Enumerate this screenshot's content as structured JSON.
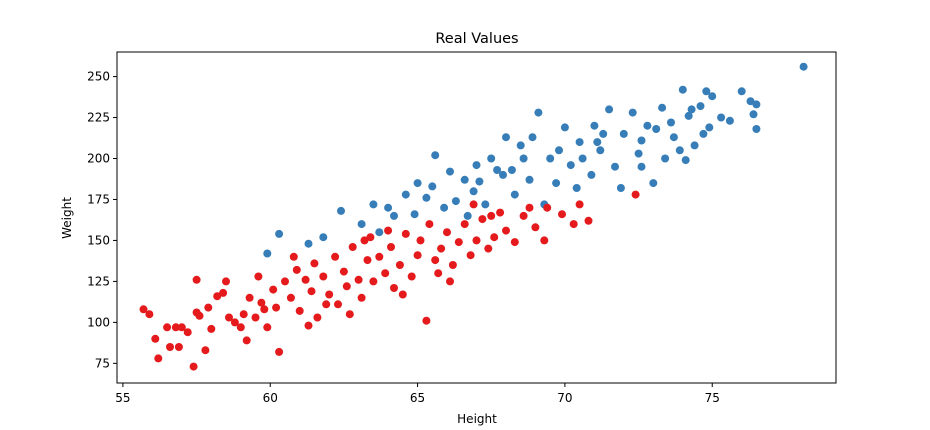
{
  "chart_data": {
    "type": "scatter",
    "title": "Real Values",
    "xlabel": "Height",
    "ylabel": "Weight",
    "xlim": [
      54.8,
      79.2
    ],
    "ylim": [
      63,
      265
    ],
    "xticks": [
      55,
      60,
      65,
      70,
      75
    ],
    "yticks": [
      75,
      100,
      125,
      150,
      175,
      200,
      225,
      250
    ],
    "grid": false,
    "legend": "none",
    "series": [
      {
        "color": "#377eb8",
        "points": [
          [
            78.1,
            256
          ],
          [
            76.5,
            233
          ],
          [
            76.3,
            235
          ],
          [
            76.0,
            241
          ],
          [
            76.4,
            227
          ],
          [
            76.5,
            218
          ],
          [
            75.3,
            225
          ],
          [
            75.0,
            238
          ],
          [
            74.8,
            241
          ],
          [
            74.6,
            232
          ],
          [
            74.3,
            230
          ],
          [
            74.9,
            219
          ],
          [
            74.0,
            242
          ],
          [
            74.2,
            226
          ],
          [
            74.4,
            208
          ],
          [
            74.1,
            199
          ],
          [
            73.6,
            222
          ],
          [
            73.3,
            231
          ],
          [
            73.7,
            213
          ],
          [
            73.9,
            205
          ],
          [
            73.1,
            218
          ],
          [
            72.6,
            211
          ],
          [
            72.3,
            228
          ],
          [
            72.0,
            215
          ],
          [
            72.5,
            203
          ],
          [
            71.5,
            230
          ],
          [
            71.0,
            220
          ],
          [
            71.7,
            195
          ],
          [
            71.2,
            205
          ],
          [
            70.5,
            210
          ],
          [
            70.0,
            219
          ],
          [
            70.9,
            190
          ],
          [
            70.2,
            196
          ],
          [
            69.8,
            205
          ],
          [
            69.1,
            228
          ],
          [
            68.9,
            213
          ],
          [
            69.5,
            200
          ],
          [
            68.6,
            200
          ],
          [
            68.2,
            193
          ],
          [
            68.8,
            187
          ],
          [
            68.3,
            178
          ],
          [
            68.0,
            213
          ],
          [
            67.5,
            200
          ],
          [
            67.1,
            186
          ],
          [
            67.7,
            193
          ],
          [
            67.3,
            172
          ],
          [
            66.6,
            187
          ],
          [
            66.1,
            192
          ],
          [
            66.9,
            180
          ],
          [
            66.3,
            174
          ],
          [
            65.9,
            170
          ],
          [
            65.6,
            202
          ],
          [
            65.5,
            183
          ],
          [
            65.0,
            185
          ],
          [
            65.3,
            176
          ],
          [
            64.6,
            178
          ],
          [
            64.9,
            166
          ],
          [
            64.2,
            165
          ],
          [
            64.0,
            170
          ],
          [
            63.5,
            172
          ],
          [
            63.1,
            160
          ],
          [
            63.7,
            155
          ],
          [
            62.4,
            168
          ],
          [
            61.8,
            152
          ],
          [
            61.3,
            148
          ],
          [
            60.3,
            154
          ],
          [
            59.9,
            142
          ],
          [
            70.4,
            182
          ],
          [
            71.9,
            182
          ],
          [
            72.6,
            195
          ],
          [
            73.0,
            185
          ],
          [
            69.3,
            172
          ],
          [
            67.9,
            190
          ],
          [
            66.7,
            165
          ],
          [
            70.6,
            200
          ],
          [
            71.3,
            215
          ],
          [
            72.8,
            220
          ],
          [
            69.7,
            185
          ],
          [
            68.5,
            208
          ],
          [
            67.0,
            196
          ],
          [
            74.7,
            215
          ],
          [
            75.6,
            223
          ],
          [
            73.4,
            200
          ],
          [
            71.1,
            210
          ]
        ]
      },
      {
        "color": "#e41a1c",
        "points": [
          [
            55.7,
            108
          ],
          [
            55.9,
            105
          ],
          [
            56.1,
            90
          ],
          [
            56.2,
            78
          ],
          [
            56.5,
            97
          ],
          [
            56.6,
            85
          ],
          [
            56.9,
            85
          ],
          [
            57.0,
            97
          ],
          [
            57.2,
            94
          ],
          [
            57.4,
            73
          ],
          [
            57.5,
            106
          ],
          [
            57.6,
            104
          ],
          [
            57.8,
            83
          ],
          [
            57.9,
            109
          ],
          [
            58.0,
            96
          ],
          [
            58.2,
            116
          ],
          [
            58.4,
            118
          ],
          [
            58.6,
            103
          ],
          [
            58.8,
            100
          ],
          [
            59.0,
            97
          ],
          [
            59.1,
            105
          ],
          [
            59.3,
            115
          ],
          [
            59.5,
            103
          ],
          [
            59.6,
            128
          ],
          [
            59.7,
            112
          ],
          [
            59.9,
            97
          ],
          [
            60.1,
            120
          ],
          [
            60.2,
            109
          ],
          [
            60.3,
            82
          ],
          [
            60.5,
            125
          ],
          [
            60.7,
            115
          ],
          [
            60.9,
            132
          ],
          [
            61.0,
            107
          ],
          [
            61.2,
            126
          ],
          [
            61.4,
            119
          ],
          [
            61.5,
            136
          ],
          [
            61.6,
            103
          ],
          [
            61.8,
            128
          ],
          [
            62.0,
            117
          ],
          [
            62.2,
            140
          ],
          [
            62.3,
            111
          ],
          [
            62.5,
            131
          ],
          [
            62.6,
            122
          ],
          [
            62.8,
            146
          ],
          [
            63.0,
            126
          ],
          [
            63.1,
            115
          ],
          [
            63.3,
            138
          ],
          [
            63.4,
            152
          ],
          [
            63.5,
            125
          ],
          [
            63.7,
            140
          ],
          [
            63.9,
            130
          ],
          [
            64.1,
            146
          ],
          [
            64.2,
            121
          ],
          [
            64.4,
            135
          ],
          [
            64.6,
            154
          ],
          [
            64.8,
            128
          ],
          [
            65.0,
            141
          ],
          [
            65.1,
            150
          ],
          [
            65.3,
            101
          ],
          [
            65.4,
            160
          ],
          [
            65.6,
            138
          ],
          [
            65.8,
            145
          ],
          [
            66.0,
            155
          ],
          [
            66.2,
            135
          ],
          [
            66.4,
            149
          ],
          [
            66.6,
            160
          ],
          [
            66.8,
            141
          ],
          [
            67.0,
            150
          ],
          [
            67.2,
            163
          ],
          [
            67.4,
            145
          ],
          [
            67.6,
            152
          ],
          [
            67.8,
            167
          ],
          [
            68.0,
            156
          ],
          [
            68.3,
            149
          ],
          [
            68.6,
            165
          ],
          [
            69.0,
            158
          ],
          [
            69.4,
            170
          ],
          [
            69.9,
            166
          ],
          [
            70.5,
            172
          ],
          [
            70.3,
            160
          ],
          [
            57.5,
            126
          ],
          [
            56.8,
            97
          ],
          [
            58.5,
            125
          ],
          [
            59.8,
            108
          ],
          [
            61.3,
            98
          ],
          [
            62.7,
            105
          ],
          [
            64.5,
            117
          ],
          [
            66.1,
            125
          ],
          [
            60.8,
            140
          ],
          [
            63.2,
            150
          ],
          [
            65.7,
            130
          ],
          [
            67.5,
            165
          ],
          [
            69.3,
            150
          ],
          [
            68.8,
            170
          ],
          [
            72.4,
            178
          ],
          [
            70.8,
            162
          ],
          [
            59.2,
            89
          ],
          [
            61.9,
            111
          ],
          [
            64.0,
            156
          ],
          [
            66.9,
            172
          ]
        ]
      }
    ]
  }
}
